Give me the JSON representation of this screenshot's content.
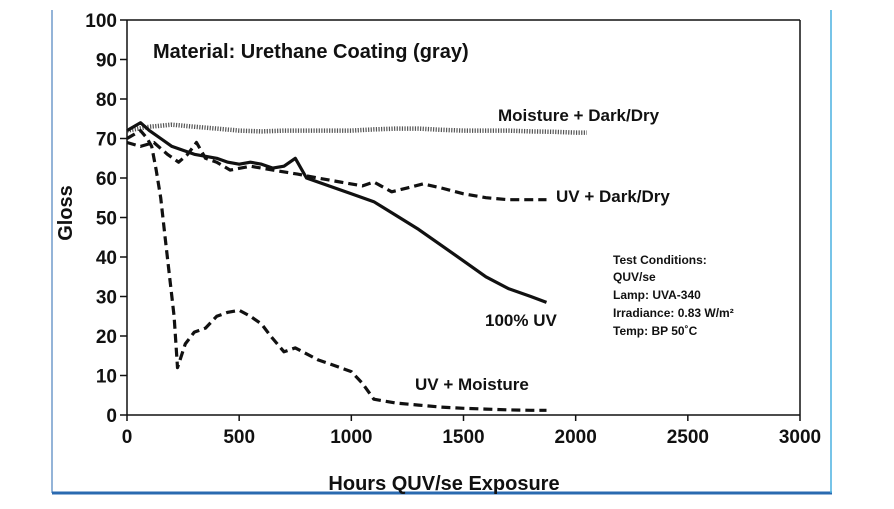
{
  "chart_data": {
    "type": "line",
    "title": "Material: Urethane Coating (gray)",
    "xlabel": "Hours QUV/se Exposure",
    "ylabel": "Gloss",
    "xlim": [
      0,
      3000
    ],
    "ylim": [
      0,
      100
    ],
    "xticks": [
      "0",
      "500",
      "1000",
      "1500",
      "2000",
      "2500",
      "3000"
    ],
    "yticks": [
      "0",
      "10",
      "20",
      "30",
      "40",
      "50",
      "60",
      "70",
      "80",
      "90",
      "100"
    ],
    "grid": false,
    "legend": "inline labels",
    "series": [
      {
        "name": "Moisture + Dark/Dry",
        "style": "dotted",
        "x": [
          0,
          100,
          200,
          300,
          400,
          500,
          600,
          700,
          800,
          900,
          1000,
          1100,
          1200,
          1300,
          1400,
          1500,
          1600,
          1700,
          1800,
          1900,
          2000,
          2050
        ],
        "y": [
          72,
          73,
          73.5,
          73,
          72.5,
          72,
          71.8,
          72,
          72,
          72,
          72,
          72.3,
          72.5,
          72.5,
          72.2,
          72,
          72,
          72,
          71.8,
          71.7,
          71.5,
          71.5
        ]
      },
      {
        "name": "UV + Dark/Dry",
        "style": "dashed",
        "x": [
          0,
          60,
          120,
          180,
          230,
          270,
          310,
          350,
          400,
          460,
          550,
          650,
          760,
          850,
          950,
          1050,
          1100,
          1180,
          1250,
          1320,
          1400,
          1500,
          1600,
          1700,
          1800,
          1870
        ],
        "y": [
          69,
          68,
          69,
          66,
          64,
          66,
          69,
          65,
          64,
          62,
          63,
          62,
          61,
          60,
          59,
          58,
          59,
          56.5,
          57.5,
          58.5,
          57.5,
          56,
          55,
          54.5,
          54.5,
          54.5
        ]
      },
      {
        "name": "100% UV",
        "style": "solid",
        "x": [
          0,
          60,
          100,
          150,
          200,
          300,
          400,
          450,
          500,
          550,
          600,
          650,
          700,
          750,
          800,
          900,
          1000,
          1100,
          1200,
          1300,
          1400,
          1500,
          1600,
          1700,
          1800,
          1870
        ],
        "y": [
          72,
          74,
          72,
          70,
          68,
          66,
          65,
          64,
          63.5,
          64,
          63.5,
          62.5,
          63,
          65,
          60,
          58,
          56,
          54,
          50.5,
          47,
          43,
          39,
          35,
          32,
          30,
          28.5
        ]
      },
      {
        "name": "UV + Moisture",
        "style": "dashed",
        "x": [
          0,
          60,
          90,
          110,
          130,
          150,
          170,
          190,
          210,
          225,
          260,
          300,
          350,
          400,
          450,
          500,
          550,
          600,
          640,
          700,
          750,
          800,
          850,
          900,
          950,
          1000,
          1050,
          1100,
          1200,
          1300,
          1400,
          1500,
          1600,
          1700,
          1800,
          1870
        ],
        "y": [
          70,
          72,
          70,
          68,
          62,
          55,
          45,
          35,
          25,
          12,
          18,
          21,
          22,
          25,
          26,
          26.5,
          25,
          23,
          20,
          16,
          17,
          15.5,
          14,
          13,
          12,
          11,
          8,
          4,
          3,
          2.5,
          2,
          1.7,
          1.5,
          1.3,
          1.2,
          1.2
        ]
      }
    ],
    "annotations": {
      "series_labels": [
        "Moisture + Dark/Dry",
        "UV + Dark/Dry",
        "100% UV",
        "UV + Moisture"
      ],
      "test_conditions": [
        "Test Conditions:",
        "QUV/se",
        "Lamp: UVA-340",
        "Irradiance: 0.83 W/m²",
        "Temp: BP 50˚C"
      ]
    }
  },
  "colors": {
    "line": "#111111",
    "moisture_dark_dry": "#555555",
    "frame_border": "#2a6ab0",
    "frame_accent": "#4ab0e0"
  }
}
